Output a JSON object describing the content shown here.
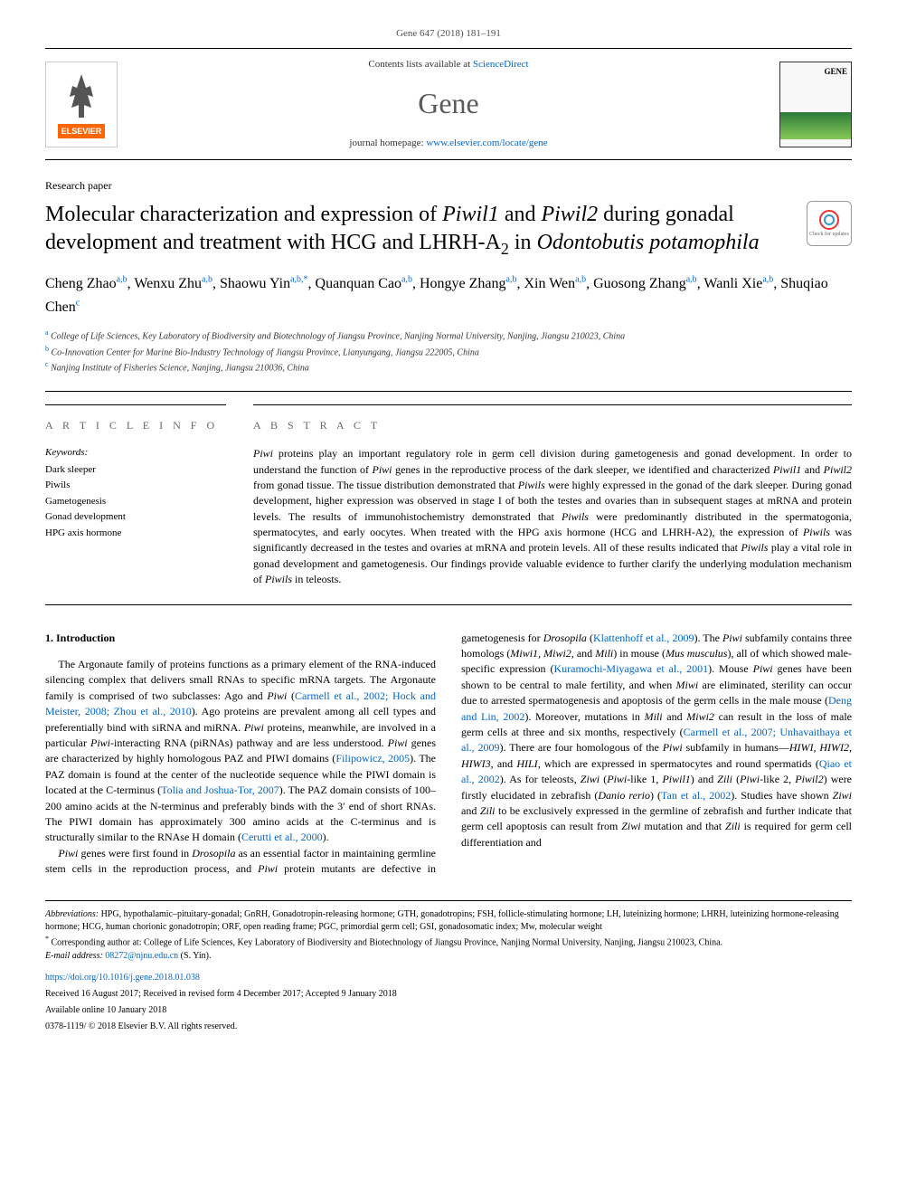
{
  "journal_ref": "Gene 647 (2018) 181–191",
  "header": {
    "contents_prefix": "Contents lists available at ",
    "contents_link": "ScienceDirect",
    "journal_name": "Gene",
    "homepage_prefix": "journal homepage: ",
    "homepage_url": "www.elsevier.com/locate/gene",
    "publisher": "ELSEVIER"
  },
  "paper_type": "Research paper",
  "title_parts": {
    "pre1": "Molecular characterization and expression of ",
    "em1": "Piwil1",
    "mid1": " and ",
    "em2": "Piwil2",
    "mid2": " during gonadal development and treatment with HCG and LHRH-A",
    "sub": "2",
    "mid3": " in ",
    "em3": "Odontobutis potamophila"
  },
  "crossmark_label": "Check for updates",
  "authors": [
    {
      "name": "Cheng Zhao",
      "aff": "a,b"
    },
    {
      "name": "Wenxu Zhu",
      "aff": "a,b"
    },
    {
      "name": "Shaowu Yin",
      "aff": "a,b,*"
    },
    {
      "name": "Quanquan Cao",
      "aff": "a,b"
    },
    {
      "name": "Hongye Zhang",
      "aff": "a,b"
    },
    {
      "name": "Xin Wen",
      "aff": "a,b"
    },
    {
      "name": "Guosong Zhang",
      "aff": "a,b"
    },
    {
      "name": "Wanli Xie",
      "aff": "a,b"
    },
    {
      "name": "Shuqiao Chen",
      "aff": "c"
    }
  ],
  "affiliations": [
    {
      "key": "a",
      "text": "College of Life Sciences, Key Laboratory of Biodiversity and Biotechnology of Jiangsu Province, Nanjing Normal University, Nanjing, Jiangsu 210023, China"
    },
    {
      "key": "b",
      "text": "Co-Innovation Center for Marine Bio-Industry Technology of Jiangsu Province, Lianyungang, Jiangsu 222005, China"
    },
    {
      "key": "c",
      "text": "Nanjing Institute of Fisheries Science, Nanjing, Jiangsu 210036, China"
    }
  ],
  "article_info_head": "A R T I C L E  I N F O",
  "abstract_head": "A B S T R A C T",
  "keywords_label": "Keywords:",
  "keywords": [
    "Dark sleeper",
    "Piwils",
    "Gametogenesis",
    "Gonad development",
    "HPG axis hormone"
  ],
  "abstract_text": "Piwi proteins play an important regulatory role in germ cell division during gametogenesis and gonad development. In order to understand the function of Piwi genes in the reproductive process of the dark sleeper, we identified and characterized Piwil1 and Piwil2 from gonad tissue. The tissue distribution demonstrated that Piwils were highly expressed in the gonad of the dark sleeper. During gonad development, higher expression was observed in stage I of both the testes and ovaries than in subsequent stages at mRNA and protein levels. The results of immunohistochemistry demonstrated that Piwils were predominantly distributed in the spermatogonia, spermatocytes, and early oocytes. When treated with the HPG axis hormone (HCG and LHRH-A2), the expression of Piwils was significantly decreased in the testes and ovaries at mRNA and protein levels. All of these results indicated that Piwils play a vital role in gonad development and gametogenesis. Our findings provide valuable evidence to further clarify the underlying modulation mechanism of Piwils in teleosts.",
  "intro_head": "1. Introduction",
  "intro_p1": "The Argonaute family of proteins functions as a primary element of the RNA-induced silencing complex that delivers small RNAs to specific mRNA targets. The Argonaute family is comprised of two subclasses: Ago and Piwi (Carmell et al., 2002; Hock and Meister, 2008; Zhou et al., 2010). Ago proteins are prevalent among all cell types and preferentially bind with siRNA and miRNA. Piwi proteins, meanwhile, are involved in a particular Piwi-interacting RNA (piRNAs) pathway and are less understood. Piwi genes are characterized by highly homologous PAZ and PIWI domains (Filipowicz, 2005). The PAZ domain is found at the center of the nucleotide sequence while the PIWI domain is located at the C-terminus (Tolia and Joshua-Tor, 2007). The PAZ domain consists of 100–200 amino acids at the N-terminus and preferably binds with the 3′ end of short RNAs. The PIWI domain has approximately 300 amino acids at the C-terminus and is structurally similar to the RNAse H domain (Cerutti et al., 2000).",
  "intro_p2": "Piwi genes were first found in Drosopila as an essential factor in maintaining germline stem cells in the reproduction process, and Piwi protein mutants are defective in gametogenesis for Drosopila (Klattenhoff et al., 2009). The Piwi subfamily contains three homologs (Miwi1, Miwi2, and Mili) in mouse (Mus musculus), all of which showed male-specific expression (Kuramochi-Miyagawa et al., 2001). Mouse Piwi genes have been shown to be central to male fertility, and when Miwi are eliminated, sterility can occur due to arrested spermatogenesis and apoptosis of the germ cells in the male mouse (Deng and Lin, 2002). Moreover, mutations in Mili and Miwi2 can result in the loss of male germ cells at three and six months, respectively (Carmell et al., 2007; Unhavaithaya et al., 2009). There are four homologous of the Piwi subfamily in humans—HIWI, HIWI2, HIWI3, and HILI, which are expressed in spermatocytes and round spermatids (Qiao et al., 2002). As for teleosts, Ziwi (Piwi-like 1, Piwil1) and Zili (Piwi-like 2, Piwil2) were firstly elucidated in zebrafish (Danio rerio) (Tan et al., 2002). Studies have shown Ziwi and Zili to be exclusively expressed in the germline of zebrafish and further indicate that germ cell apoptosis can result from Ziwi mutation and that Zili is required for germ cell differentiation and",
  "footnotes": {
    "abbrev_label": "Abbreviations:",
    "abbrev_text": " HPG, hypothalamic–pituitary-gonadal; GnRH, Gonadotropin-releasing hormone; GTH, gonadotropins; FSH, follicle-stimulating hormone; LH, luteinizing hormone; LHRH, luteinizing hormone-releasing hormone; HCG, human chorionic gonadotropin; ORF, open reading frame; PGC, primordial germ cell; GSI, gonadosomatic index; Mw, molecular weight",
    "corr_text": "Corresponding author at: College of Life Sciences, Key Laboratory of Biodiversity and Biotechnology of Jiangsu Province, Nanjing Normal University, Nanjing, Jiangsu 210023, China.",
    "email_label": "E-mail address: ",
    "email": "08272@njnu.edu.cn",
    "email_suffix": " (S. Yin)."
  },
  "footer": {
    "doi": "https://doi.org/10.1016/j.gene.2018.01.038",
    "dates": "Received 16 August 2017; Received in revised form 4 December 2017; Accepted 9 January 2018",
    "available": "Available online 10 January 2018",
    "copyright": "0378-1119/ © 2018 Elsevier B.V. All rights reserved."
  },
  "colors": {
    "link": "#0066cc",
    "elsevier_orange": "#ff6600",
    "text_grey": "#5a5a5a"
  }
}
